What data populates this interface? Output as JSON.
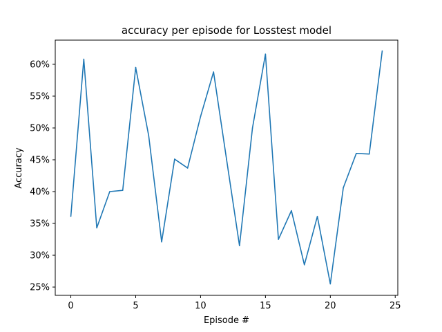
{
  "chart_data": {
    "type": "line",
    "title": "accuracy per episode for Losstest model",
    "xlabel": "Episode #",
    "ylabel": "Accuracy",
    "xlim": [
      -1.2,
      25.2
    ],
    "ylim": [
      0.237,
      0.638
    ],
    "xticks": [
      0,
      5,
      10,
      15,
      20,
      25
    ],
    "xtick_labels": [
      "0",
      "5",
      "10",
      "15",
      "20",
      "25"
    ],
    "yticks": [
      0.25,
      0.3,
      0.35,
      0.4,
      0.45,
      0.5,
      0.55,
      0.6
    ],
    "ytick_labels": [
      "25%",
      "30%",
      "35%",
      "40%",
      "45%",
      "50%",
      "55%",
      "60%"
    ],
    "grid": false,
    "line_color": "#1f77b4",
    "series": [
      {
        "x": [
          0,
          1,
          2,
          3,
          4,
          5,
          6,
          7,
          8,
          9,
          10,
          11,
          12,
          13,
          14,
          15,
          16,
          17,
          18,
          19,
          20,
          21,
          22,
          23,
          24
        ],
        "values": [
          0.361,
          0.608,
          0.343,
          0.4,
          0.402,
          0.595,
          0.488,
          0.321,
          0.451,
          0.437,
          0.518,
          0.588,
          0.451,
          0.315,
          0.5,
          0.616,
          0.325,
          0.37,
          0.285,
          0.361,
          0.255,
          0.406,
          0.46,
          0.459,
          0.621
        ]
      }
    ]
  }
}
